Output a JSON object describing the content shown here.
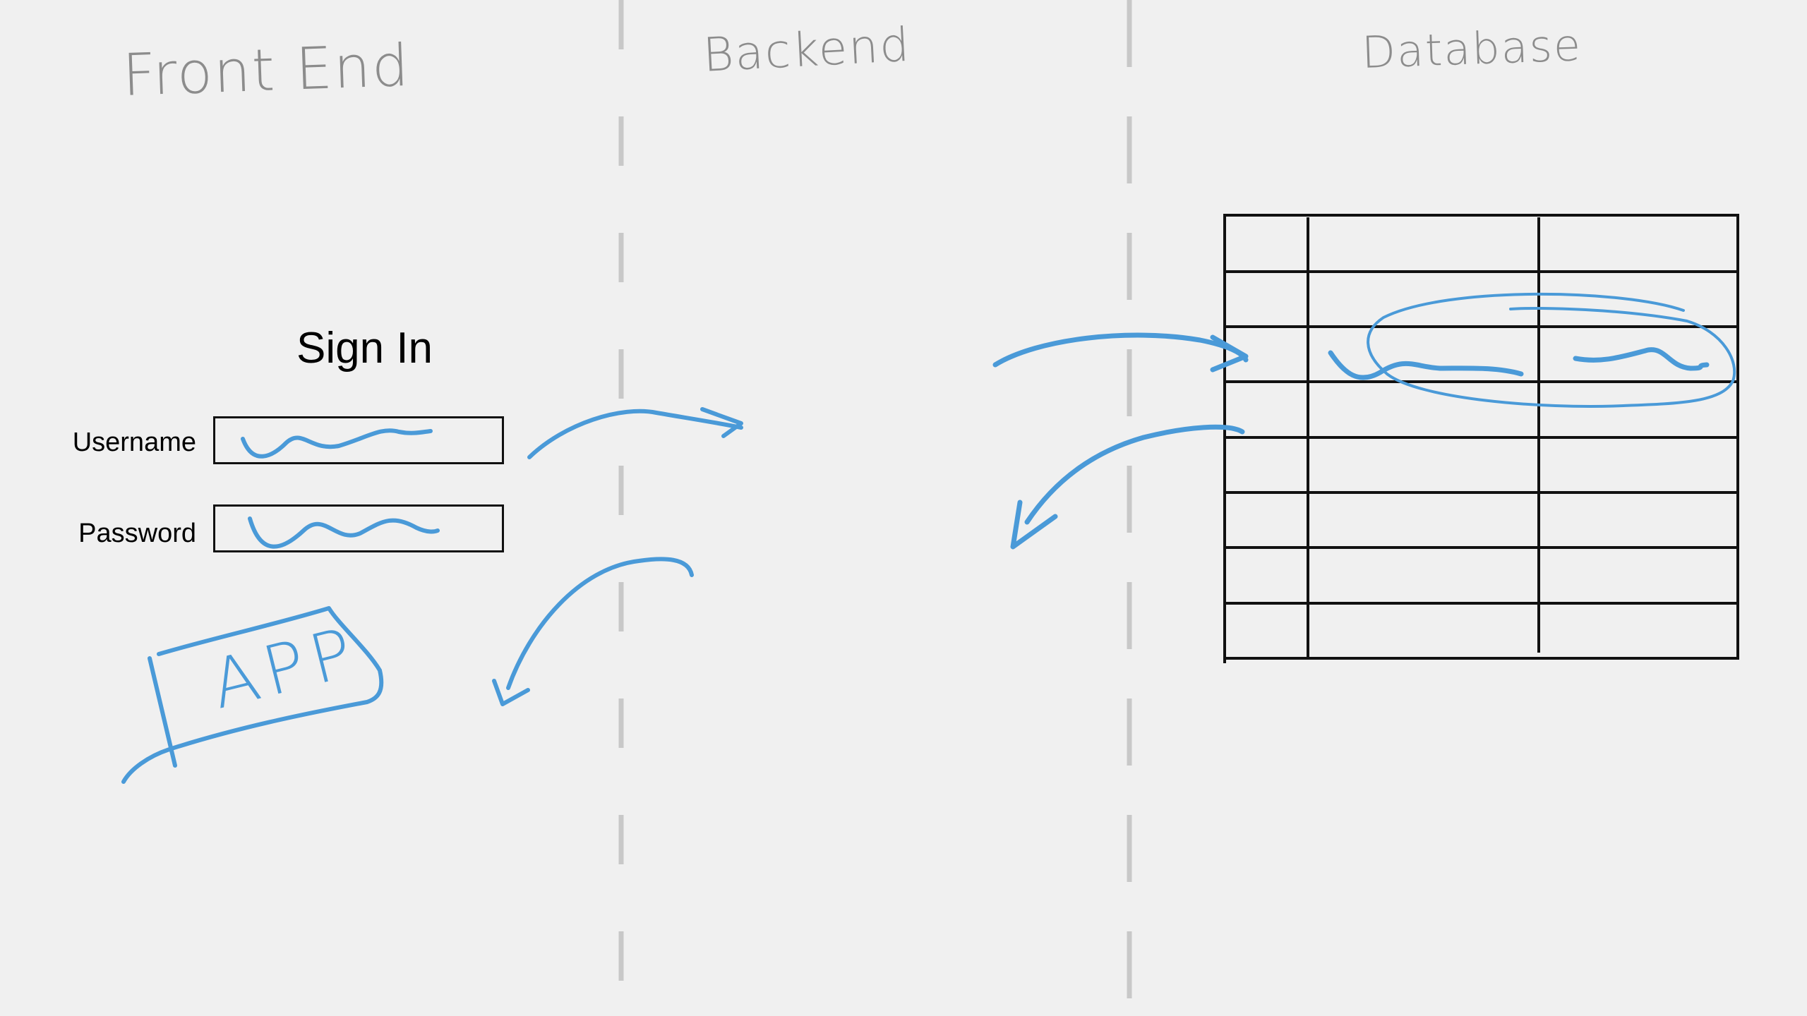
{
  "columns": {
    "frontend": "Front End",
    "backend": "Backend",
    "database": "Database"
  },
  "signin": {
    "title": "Sign In",
    "username_label": "Username",
    "password_label": "Password"
  },
  "app_label": "APP",
  "colors": {
    "background": "#f0f0f0",
    "ink_blue": "#4a9ad8",
    "divider_gray": "#c8c8c8",
    "title_gray": "#8c8c8c",
    "table_black": "#111111"
  }
}
